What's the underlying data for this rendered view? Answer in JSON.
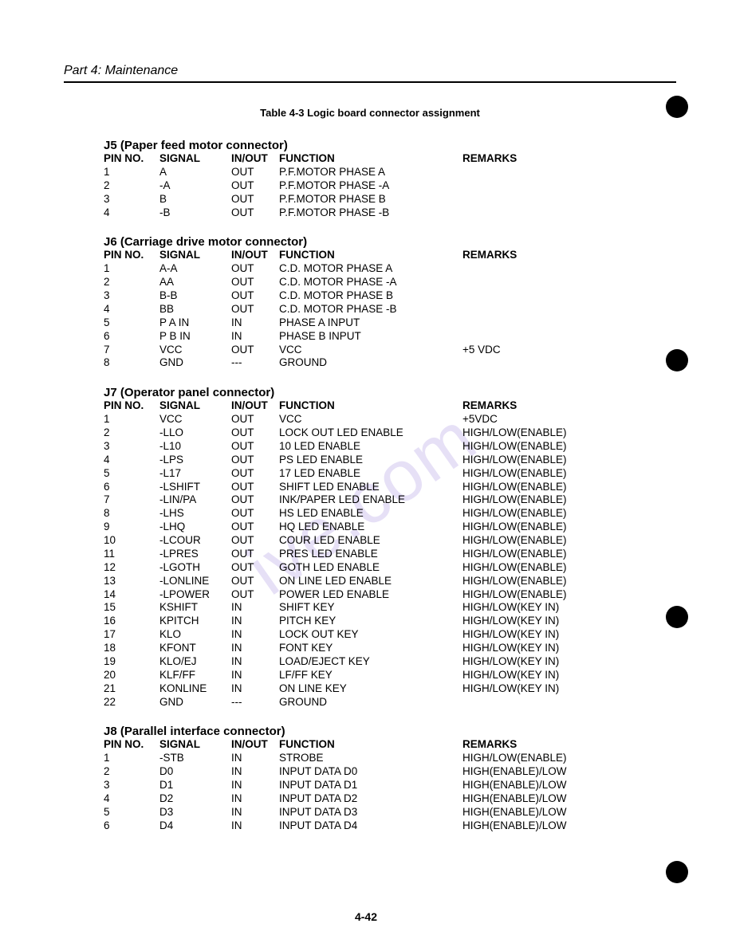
{
  "header": {
    "part": "Part 4: Maintenance"
  },
  "caption": "Table 4-3 Logic board connector assignment",
  "cols": {
    "pin": "PIN NO.",
    "signal": "SIGNAL",
    "io": "IN/OUT",
    "fn": "FUNCTION",
    "rem": "REMARKS"
  },
  "page_number": "4-42",
  "watermark_color": "#b9a7e6",
  "punch_color": "#000000",
  "sections": [
    {
      "title": "J5 (Paper feed motor connector)",
      "rows": [
        {
          "pin": "1",
          "sig": "A",
          "io": "OUT",
          "fn": "P.F.MOTOR PHASE A",
          "rem": ""
        },
        {
          "pin": "2",
          "sig": "-A",
          "io": "OUT",
          "fn": "P.F.MOTOR PHASE -A",
          "rem": ""
        },
        {
          "pin": "3",
          "sig": "B",
          "io": "OUT",
          "fn": "P.F.MOTOR PHASE B",
          "rem": ""
        },
        {
          "pin": "4",
          "sig": "-B",
          "io": "OUT",
          "fn": "P.F.MOTOR PHASE -B",
          "rem": ""
        }
      ]
    },
    {
      "title": "J6 (Carriage drive motor connector)",
      "rows": [
        {
          "pin": "1",
          "sig": "A-A",
          "io": "OUT",
          "fn": "C.D. MOTOR PHASE A",
          "rem": ""
        },
        {
          "pin": "2",
          "sig": "AA",
          "io": "OUT",
          "fn": "C.D. MOTOR PHASE -A",
          "rem": ""
        },
        {
          "pin": "3",
          "sig": "B-B",
          "io": "OUT",
          "fn": "C.D. MOTOR PHASE B",
          "rem": ""
        },
        {
          "pin": "4",
          "sig": "BB",
          "io": "OUT",
          "fn": "C.D. MOTOR PHASE -B",
          "rem": ""
        },
        {
          "pin": "5",
          "sig": "P A IN",
          "io": "IN",
          "fn": "PHASE A INPUT",
          "rem": ""
        },
        {
          "pin": "6",
          "sig": "P B IN",
          "io": "IN",
          "fn": "PHASE B INPUT",
          "rem": ""
        },
        {
          "pin": "7",
          "sig": "VCC",
          "io": "OUT",
          "fn": "VCC",
          "rem": "+5 VDC"
        },
        {
          "pin": "8",
          "sig": "GND",
          "io": "---",
          "fn": "GROUND",
          "rem": ""
        }
      ]
    },
    {
      "title": "J7 (Operator panel connector)",
      "rows": [
        {
          "pin": "1",
          "sig": "VCC",
          "io": "OUT",
          "fn": "VCC",
          "rem": "+5VDC"
        },
        {
          "pin": "2",
          "sig": "-LLO",
          "io": "OUT",
          "fn": "LOCK OUT LED ENABLE",
          "rem": "HIGH/LOW(ENABLE)"
        },
        {
          "pin": "3",
          "sig": "-L10",
          "io": "OUT",
          "fn": "10 LED ENABLE",
          "rem": "HIGH/LOW(ENABLE)"
        },
        {
          "pin": "4",
          "sig": "-LPS",
          "io": "OUT",
          "fn": "PS LED ENABLE",
          "rem": "HIGH/LOW(ENABLE)"
        },
        {
          "pin": "5",
          "sig": "-L17",
          "io": "OUT",
          "fn": "17 LED ENABLE",
          "rem": "HIGH/LOW(ENABLE)"
        },
        {
          "pin": "6",
          "sig": "-LSHIFT",
          "io": "OUT",
          "fn": "SHIFT LED ENABLE",
          "rem": "HIGH/LOW(ENABLE)"
        },
        {
          "pin": "7",
          "sig": "-LIN/PA",
          "io": "OUT",
          "fn": "INK/PAPER LED ENABLE",
          "rem": "HIGH/LOW(ENABLE)"
        },
        {
          "pin": "8",
          "sig": "-LHS",
          "io": "OUT",
          "fn": "HS LED ENABLE",
          "rem": "HIGH/LOW(ENABLE)"
        },
        {
          "pin": "9",
          "sig": "-LHQ",
          "io": "OUT",
          "fn": "HQ LED ENABLE",
          "rem": "HIGH/LOW(ENABLE)"
        },
        {
          "pin": "10",
          "sig": "-LCOUR",
          "io": "OUT",
          "fn": "COUR LED ENABLE",
          "rem": "HIGH/LOW(ENABLE)"
        },
        {
          "pin": "11",
          "sig": "-LPRES",
          "io": "OUT",
          "fn": "PRES LED ENABLE",
          "rem": "HIGH/LOW(ENABLE)"
        },
        {
          "pin": "12",
          "sig": "-LGOTH",
          "io": "OUT",
          "fn": "GOTH LED ENABLE",
          "rem": "HIGH/LOW(ENABLE)"
        },
        {
          "pin": "13",
          "sig": "-LONLINE",
          "io": "OUT",
          "fn": "ON LINE LED ENABLE",
          "rem": "HIGH/LOW(ENABLE)"
        },
        {
          "pin": "14",
          "sig": "-LPOWER",
          "io": "OUT",
          "fn": "POWER LED ENABLE",
          "rem": "HIGH/LOW(ENABLE)"
        },
        {
          "pin": "15",
          "sig": "KSHIFT",
          "io": "IN",
          "fn": "SHIFT KEY",
          "rem": "HIGH/LOW(KEY IN)"
        },
        {
          "pin": "16",
          "sig": "KPITCH",
          "io": "IN",
          "fn": "PITCH KEY",
          "rem": "HIGH/LOW(KEY IN)"
        },
        {
          "pin": "17",
          "sig": "KLO",
          "io": "IN",
          "fn": "LOCK OUT KEY",
          "rem": "HIGH/LOW(KEY IN)"
        },
        {
          "pin": "18",
          "sig": "KFONT",
          "io": "IN",
          "fn": "FONT KEY",
          "rem": "HIGH/LOW(KEY IN)"
        },
        {
          "pin": "19",
          "sig": "KLO/EJ",
          "io": "IN",
          "fn": "LOAD/EJECT KEY",
          "rem": "HIGH/LOW(KEY IN)"
        },
        {
          "pin": "20",
          "sig": "KLF/FF",
          "io": "IN",
          "fn": "LF/FF KEY",
          "rem": "HIGH/LOW(KEY IN)"
        },
        {
          "pin": "21",
          "sig": "KONLINE",
          "io": "IN",
          "fn": "ON LINE KEY",
          "rem": "HIGH/LOW(KEY IN)"
        },
        {
          "pin": "22",
          "sig": "GND",
          "io": "---",
          "fn": "GROUND",
          "rem": ""
        }
      ]
    },
    {
      "title": "J8 (Parallel interface connector)",
      "rows": [
        {
          "pin": "1",
          "sig": "-STB",
          "io": "IN",
          "fn": "STROBE",
          "rem": "HIGH/LOW(ENABLE)"
        },
        {
          "pin": "2",
          "sig": "D0",
          "io": "IN",
          "fn": "INPUT DATA D0",
          "rem": "HIGH(ENABLE)/LOW"
        },
        {
          "pin": "3",
          "sig": "D1",
          "io": "IN",
          "fn": "INPUT DATA D1",
          "rem": "HIGH(ENABLE)/LOW"
        },
        {
          "pin": "4",
          "sig": "D2",
          "io": "IN",
          "fn": "INPUT DATA D2",
          "rem": "HIGH(ENABLE)/LOW"
        },
        {
          "pin": "5",
          "sig": "D3",
          "io": "IN",
          "fn": "INPUT DATA D3",
          "rem": "HIGH(ENABLE)/LOW"
        },
        {
          "pin": "6",
          "sig": "D4",
          "io": "IN",
          "fn": "INPUT DATA D4",
          "rem": "HIGH(ENABLE)/LOW"
        }
      ]
    }
  ]
}
